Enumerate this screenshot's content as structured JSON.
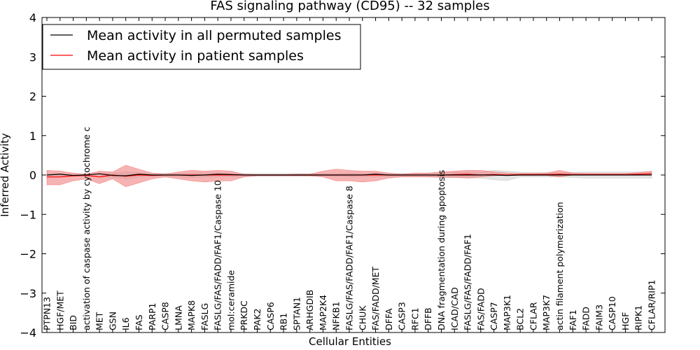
{
  "chart_data": {
    "type": "line",
    "title": "FAS signaling pathway (CD95) -- 32 samples",
    "xlabel": "Cellular Entities",
    "ylabel": "Inferred Activity",
    "ylim": [
      -4,
      4
    ],
    "yticks": [
      -4,
      -3,
      -2,
      -1,
      0,
      1,
      2,
      3,
      4
    ],
    "ytick_labels": [
      "−4",
      "−3",
      "−2",
      "−1",
      "0",
      "1",
      "2",
      "3",
      "4"
    ],
    "grid": false,
    "legend_position": "top-left",
    "categories": [
      "PTPN13",
      "HGF/MET",
      "BID",
      "activation of caspase activity by cytochrome c",
      "MET",
      "GSN",
      "IL6",
      "FAS",
      "PARP1",
      "CASP8",
      "LMNA",
      "MAPK8",
      "FASLG",
      "FASLG/FAS/FADD/FAF1/Caspase 10",
      "mol:ceramide",
      "PRKDC",
      "PAK2",
      "CASP6",
      "RB1",
      "SPTAN1",
      "ARHGDIB",
      "MAP2K4",
      "NFKB1",
      "FASLG/FAS/FADD/FAF1/Caspase 8",
      "CHUK",
      "FAS/FADD/MET",
      "DFFA",
      "CASP3",
      "RFC1",
      "DFFB",
      "DNA fragmentation during apoptosis",
      "ICAD/CAD",
      "FASLG/FAS/FADD/FAF1",
      "FAS/FADD",
      "CASP7",
      "MAP3K1",
      "BCL2",
      "CFLAR",
      "MAP3K7",
      "actin filament polymerization",
      "FAF1",
      "FADD",
      "FAIM3",
      "CASP10",
      "HGF",
      "RIPK1",
      "CFLAR/RIP1"
    ],
    "series": [
      {
        "name": "Mean activity in all permuted samples",
        "color": "#000000",
        "values": [
          0.0,
          0.02,
          -0.01,
          0.0,
          0.03,
          -0.01,
          -0.02,
          0.02,
          0.0,
          0.0,
          0.0,
          -0.01,
          0.0,
          0.02,
          0.01,
          0.0,
          0.0,
          0.0,
          0.0,
          0.0,
          0.0,
          0.0,
          0.0,
          0.0,
          0.0,
          0.02,
          0.0,
          0.0,
          0.0,
          0.0,
          0.0,
          0.0,
          0.0,
          0.0,
          0.0,
          -0.01,
          0.0,
          0.0,
          0.0,
          0.0,
          0.0,
          0.0,
          0.0,
          0.0,
          0.0,
          0.0,
          0.0
        ],
        "band_lower": [
          -0.04,
          -0.03,
          -0.03,
          -0.02,
          -0.05,
          -0.06,
          -0.1,
          -0.05,
          -0.03,
          -0.04,
          -0.05,
          -0.07,
          -0.05,
          -0.04,
          -0.04,
          -0.04,
          -0.03,
          -0.03,
          -0.03,
          -0.03,
          -0.03,
          -0.03,
          -0.03,
          -0.05,
          -0.04,
          -0.04,
          -0.04,
          -0.04,
          -0.04,
          -0.05,
          -0.06,
          -0.06,
          -0.07,
          -0.08,
          -0.12,
          -0.14,
          -0.05,
          -0.05,
          -0.05,
          -0.05,
          -0.06,
          -0.08,
          -0.08,
          -0.08,
          -0.08,
          -0.08,
          -0.08
        ],
        "band_upper": [
          0.05,
          0.04,
          0.03,
          0.03,
          0.05,
          0.05,
          0.08,
          0.06,
          0.04,
          0.05,
          0.04,
          0.05,
          0.05,
          0.06,
          0.04,
          0.04,
          0.04,
          0.04,
          0.04,
          0.04,
          0.04,
          0.04,
          0.04,
          0.05,
          0.04,
          0.05,
          0.04,
          0.04,
          0.04,
          0.05,
          0.06,
          0.07,
          0.08,
          0.07,
          0.12,
          0.1,
          0.07,
          0.06,
          0.06,
          0.06,
          0.07,
          0.08,
          0.08,
          0.08,
          0.08,
          0.08,
          0.08
        ]
      },
      {
        "name": "Mean activity in patient samples",
        "color": "#ff0000",
        "values": [
          -0.05,
          -0.05,
          -0.02,
          -0.01,
          -0.05,
          0.0,
          -0.03,
          0.0,
          -0.01,
          0.0,
          0.0,
          0.0,
          0.0,
          0.0,
          0.0,
          0.0,
          0.0,
          0.0,
          0.0,
          0.0,
          0.0,
          0.0,
          0.0,
          0.0,
          0.0,
          0.0,
          0.0,
          0.0,
          0.0,
          0.0,
          0.0,
          0.01,
          0.02,
          0.0,
          0.01,
          0.0,
          0.01,
          0.01,
          0.01,
          0.02,
          0.01,
          0.01,
          0.01,
          0.01,
          0.01,
          0.02,
          0.03
        ],
        "band_lower": [
          -0.25,
          -0.25,
          -0.15,
          -0.1,
          -0.22,
          -0.1,
          -0.3,
          -0.2,
          -0.1,
          -0.05,
          -0.1,
          -0.15,
          -0.18,
          -0.15,
          -0.15,
          -0.05,
          -0.02,
          -0.02,
          -0.02,
          -0.02,
          -0.02,
          -0.05,
          -0.15,
          -0.15,
          -0.18,
          -0.15,
          -0.08,
          -0.05,
          -0.05,
          -0.05,
          -0.06,
          -0.06,
          -0.08,
          -0.05,
          -0.02,
          0.0,
          -0.01,
          -0.01,
          -0.01,
          -0.05,
          0.0,
          0.0,
          0.0,
          0.0,
          0.0,
          0.0,
          0.0
        ],
        "band_upper": [
          0.12,
          0.1,
          0.05,
          0.02,
          0.1,
          0.08,
          0.25,
          0.15,
          0.05,
          0.02,
          0.08,
          0.12,
          0.1,
          0.12,
          0.1,
          0.02,
          0.01,
          0.01,
          0.01,
          0.02,
          0.02,
          0.1,
          0.15,
          0.12,
          0.1,
          0.1,
          0.05,
          0.02,
          0.05,
          0.05,
          0.08,
          0.1,
          0.12,
          0.12,
          0.08,
          0.05,
          0.04,
          0.04,
          0.05,
          0.12,
          0.05,
          0.04,
          0.04,
          0.04,
          0.04,
          0.06,
          0.1
        ]
      }
    ]
  }
}
